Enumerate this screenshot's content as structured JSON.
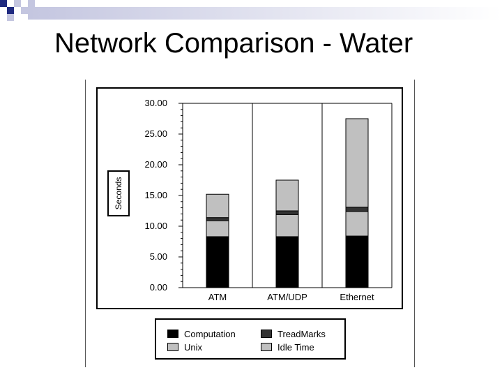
{
  "slide": {
    "title": "Network Comparison - Water"
  },
  "legend": {
    "items": [
      {
        "label": "Computation",
        "color": "#000000"
      },
      {
        "label": "TreadMarks",
        "color": "#333333"
      },
      {
        "label": "Unix",
        "color": "#c0c0c0"
      },
      {
        "label": "Idle Time",
        "color": "#c0c0c0"
      }
    ]
  },
  "chart_data": {
    "type": "bar",
    "stacked": true,
    "categories": [
      "ATM",
      "ATM/UDP",
      "Ethernet"
    ],
    "series": [
      {
        "name": "Computation",
        "color": "#000000",
        "values": [
          8.3,
          8.3,
          8.4
        ]
      },
      {
        "name": "Unix",
        "color": "#c0c0c0",
        "values": [
          2.6,
          3.6,
          4.0
        ]
      },
      {
        "name": "TreadMarks",
        "color": "#333333",
        "values": [
          0.5,
          0.6,
          0.7
        ]
      },
      {
        "name": "Idle Time",
        "color": "#c0c0c0",
        "values": [
          3.8,
          5.0,
          14.4
        ]
      }
    ],
    "ylabel": "Seconds",
    "ylim": [
      0,
      30
    ],
    "yticks": [
      "0.00",
      "5.00",
      "10.00",
      "15.00",
      "20.00",
      "25.00",
      "30.00"
    ],
    "grid": "vertical category lines"
  }
}
